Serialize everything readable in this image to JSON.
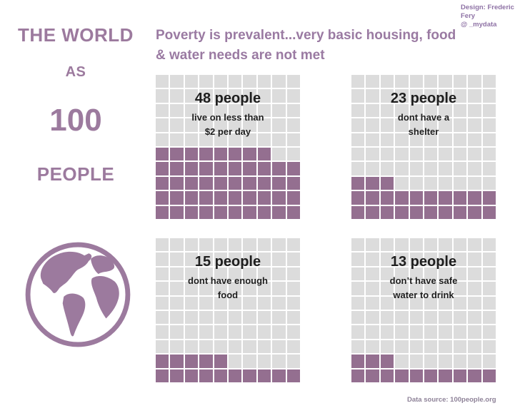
{
  "credit": {
    "line1": "Design: Frederic Fery",
    "line2": "@ _mydata"
  },
  "sidebar": {
    "title_line1": "THE WORLD",
    "title_line2": "AS",
    "title_line3": "100",
    "title_line4": "PEOPLE",
    "icon": "globe-icon"
  },
  "header": {
    "line1": "Poverty is prevalent...very basic housing, food",
    "line2": "& water needs are not met"
  },
  "footer": {
    "source": "Data source: 100people.org"
  },
  "colors": {
    "accent_purple": "#9c7a9e",
    "waffle_fill": "#946f90",
    "waffle_empty": "#dcdcdc",
    "header_text": "#9a7aa2",
    "credit_text": "#8e72a5",
    "source_text": "#8e8298",
    "dark_text": "#1e1e1e"
  },
  "chart_data": [
    {
      "type": "waffle",
      "grid_columns": 10,
      "grid_rows": 10,
      "total": 100,
      "value": 48,
      "title": "48 people",
      "subtitle_lines": [
        "live on less than",
        "$2 per day"
      ],
      "fill_origin": "bottom-left",
      "fill_color": "#946f90",
      "empty_color": "#dcdcdc"
    },
    {
      "type": "waffle",
      "grid_columns": 10,
      "grid_rows": 10,
      "total": 100,
      "value": 23,
      "title": "23 people",
      "subtitle_lines": [
        "dont have a",
        "shelter"
      ],
      "fill_origin": "bottom-left",
      "fill_color": "#946f90",
      "empty_color": "#dcdcdc"
    },
    {
      "type": "waffle",
      "grid_columns": 10,
      "grid_rows": 10,
      "total": 100,
      "value": 15,
      "title": "15 people",
      "subtitle_lines": [
        "dont have enough",
        "food"
      ],
      "fill_origin": "bottom-left",
      "fill_color": "#946f90",
      "empty_color": "#dcdcdc"
    },
    {
      "type": "waffle",
      "grid_columns": 10,
      "grid_rows": 10,
      "total": 100,
      "value": 13,
      "title": "13 people",
      "subtitle_lines": [
        "don’t have safe",
        "water to drink"
      ],
      "fill_origin": "bottom-left",
      "fill_color": "#946f90",
      "empty_color": "#dcdcdc"
    }
  ]
}
